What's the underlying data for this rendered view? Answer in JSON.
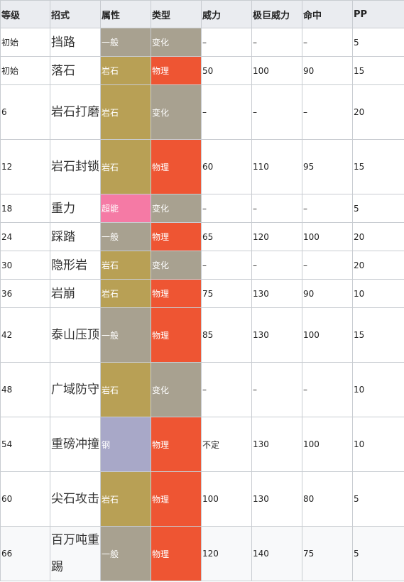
{
  "headers": {
    "level": "等级",
    "move": "招式",
    "type": "属性",
    "category": "类型",
    "power": "威力",
    "max_power": "极巨威力",
    "accuracy": "命中",
    "pp": "PP"
  },
  "colors": {
    "normal": "#a8a190",
    "rock": "#b8a055",
    "psychic": "#f57aa5",
    "steel": "#a8a8c8",
    "status": "#a8a190",
    "physical": "#ee5533",
    "border": "#c8ccd1",
    "header_bg": "#eaecf0"
  },
  "rows": [
    {
      "level": "初始",
      "move": "挡路",
      "type": "一般",
      "type_key": "normal",
      "category": "变化",
      "cat_key": "status",
      "power": "–",
      "max_power": "–",
      "accuracy": "–",
      "pp": "5"
    },
    {
      "level": "初始",
      "move": "落石",
      "type": "岩石",
      "type_key": "rock",
      "category": "物理",
      "cat_key": "physical",
      "power": "50",
      "max_power": "100",
      "accuracy": "90",
      "pp": "15"
    },
    {
      "level": "6",
      "move": "岩石打磨",
      "type": "岩石",
      "type_key": "rock",
      "category": "变化",
      "cat_key": "status",
      "power": "–",
      "max_power": "–",
      "accuracy": "–",
      "pp": "20"
    },
    {
      "level": "12",
      "move": "岩石封锁",
      "type": "岩石",
      "type_key": "rock",
      "category": "物理",
      "cat_key": "physical",
      "power": "60",
      "max_power": "110",
      "accuracy": "95",
      "pp": "15"
    },
    {
      "level": "18",
      "move": "重力",
      "type": "超能",
      "type_key": "psychic",
      "category": "变化",
      "cat_key": "status",
      "power": "–",
      "max_power": "–",
      "accuracy": "–",
      "pp": "5"
    },
    {
      "level": "24",
      "move": "踩踏",
      "type": "一般",
      "type_key": "normal",
      "category": "物理",
      "cat_key": "physical",
      "power": "65",
      "max_power": "120",
      "accuracy": "100",
      "pp": "20"
    },
    {
      "level": "30",
      "move": "隐形岩",
      "type": "岩石",
      "type_key": "rock",
      "category": "变化",
      "cat_key": "status",
      "power": "–",
      "max_power": "–",
      "accuracy": "–",
      "pp": "20"
    },
    {
      "level": "36",
      "move": "岩崩",
      "type": "岩石",
      "type_key": "rock",
      "category": "物理",
      "cat_key": "physical",
      "power": "75",
      "max_power": "130",
      "accuracy": "90",
      "pp": "10"
    },
    {
      "level": "42",
      "move": "泰山压顶",
      "type": "一般",
      "type_key": "normal",
      "category": "物理",
      "cat_key": "physical",
      "power": "85",
      "max_power": "130",
      "accuracy": "100",
      "pp": "15"
    },
    {
      "level": "48",
      "move": "广域防守",
      "type": "岩石",
      "type_key": "rock",
      "category": "变化",
      "cat_key": "status",
      "power": "–",
      "max_power": "–",
      "accuracy": "–",
      "pp": "10"
    },
    {
      "level": "54",
      "move": "重磅冲撞",
      "type": "钢",
      "type_key": "steel",
      "category": "物理",
      "cat_key": "physical",
      "power": "不定",
      "max_power": "130",
      "accuracy": "100",
      "pp": "10"
    },
    {
      "level": "60",
      "move": "尖石攻击",
      "type": "岩石",
      "type_key": "rock",
      "category": "物理",
      "cat_key": "physical",
      "power": "100",
      "max_power": "130",
      "accuracy": "80",
      "pp": "5"
    },
    {
      "level": "66",
      "move": "百万吨重踢",
      "type": "一般",
      "type_key": "normal",
      "category": "物理",
      "cat_key": "physical",
      "power": "120",
      "max_power": "140",
      "accuracy": "75",
      "pp": "5"
    }
  ]
}
